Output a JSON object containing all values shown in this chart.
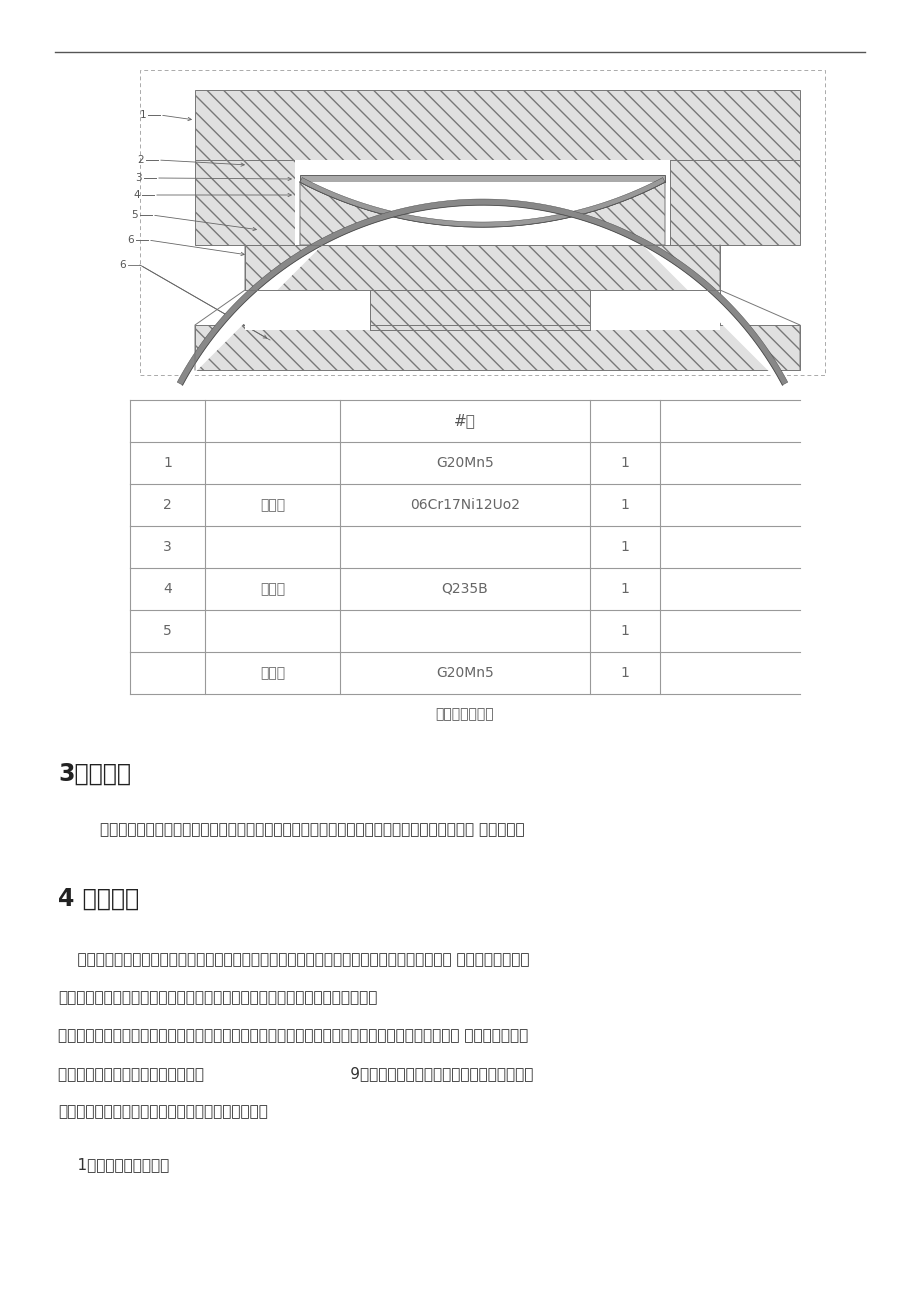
{
  "bg_color": "#ffffff",
  "table_title": "#质",
  "table_rows": [
    [
      "1",
      "",
      "G20Mn5",
      "1"
    ],
    [
      "2",
      "不砾狱",
      "06Cr17Ni12Uo2",
      "1"
    ],
    [
      "3",
      "",
      "",
      "1"
    ],
    [
      "4",
      "中间惭",
      "Q235B",
      "1"
    ],
    [
      "5",
      "",
      "",
      "1"
    ],
    [
      "",
      "下支戱",
      "G20Mn5",
      "1"
    ]
  ],
  "table_caption": "图２：球型支座",
  "section3_title": "3适用范围",
  "section3_text": "本工法适用于大跨度空间结构如网架，桁架，连廊，膜结构，钢屋盖等钢结构建筑及大跨度桥 梁工程等。",
  "section4_title": "4 工艺原理",
  "section4_para1": "    该项施工技术是滑动支座通过球面聚四氟乙烯板的滑动来实现支座的转动过程，转动力矩小， 而且转动力矩只与",
  "section4_para2": "支座球面半径及聚四氟乙烯板的摩擦系数有关，与支座转角大小无关。其用钢量",
  "section4_para3": "少体积小，制造成品相对较低，具有万向转动万向承载多向位移等其它类型支座所无法比拟的优点， 而且采用抗拉、",
  "section4_para4": "抗剪的特殊结构，具有能抗地震烈度                              9度的能力，可有效的解决钢结构抗震问题、",
  "section4_para5": "复杂结构施工问题。球型铰支座主要性能指标如下：",
  "section4_item1": "    1、可承受竖向载荷；",
  "hatch_ec": "#777777",
  "hatch_fc": "#e0e0e0",
  "line_color": "#555555",
  "text_color_dark": "#333333",
  "text_color_mid": "#666666",
  "table_border_color": "#999999"
}
